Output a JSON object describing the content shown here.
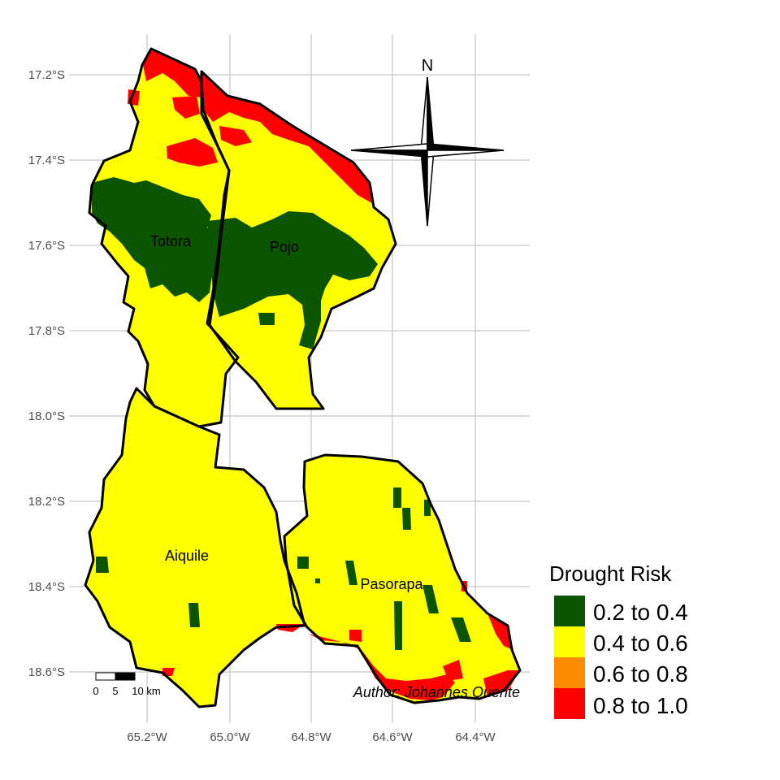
{
  "map": {
    "y_ticks": [
      "17.2°S",
      "17.4°S",
      "17.6°S",
      "17.8°S",
      "18.0°S",
      "18.2°S",
      "18.4°S",
      "18.6°S"
    ],
    "x_ticks": [
      "65.2°W",
      "65.0°W",
      "64.8°W",
      "64.6°W",
      "64.4°W"
    ],
    "regions": [
      "Totora",
      "Pojo",
      "Aiquile",
      "Pasorapa"
    ],
    "author": "Author: Johannes Quente",
    "north_label": "N",
    "scale_labels": [
      "0",
      "5",
      "10 km"
    ]
  },
  "legend": {
    "title": "Drought Risk",
    "items": [
      {
        "label": "0.2 to 0.4",
        "color": "#0b5400"
      },
      {
        "label": "0.4 to 0.6",
        "color": "#ffff00"
      },
      {
        "label": "0.6 to 0.8",
        "color": "#ff8c00"
      },
      {
        "label": "0.8 to 1.0",
        "color": "#ff0000"
      }
    ]
  },
  "colors": {
    "low": "#0b5400",
    "medium": "#ffff00",
    "high": "#ff0000",
    "border": "#000000",
    "grid": "#cccccc"
  }
}
